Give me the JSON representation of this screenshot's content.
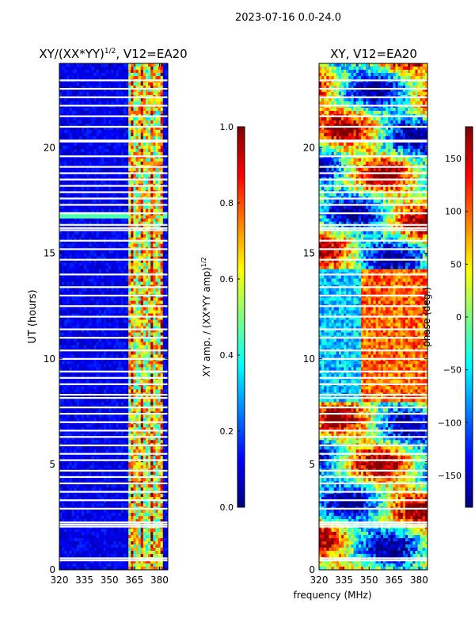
{
  "figure_title": "2023-07-16 0.0-24.0",
  "xlabel_shared": "frequency (MHz)",
  "colors": {
    "jet": [
      "#00007f",
      "#0000ff",
      "#007fff",
      "#00ffff",
      "#7fff7f",
      "#ffff00",
      "#ff7f00",
      "#ff0000",
      "#7f0000"
    ],
    "gap": "#ffffff",
    "frame": "#000000"
  },
  "chart_data": [
    {
      "type": "heatmap",
      "title_main": "XY/(XX*YY)",
      "title_sup": "1/2",
      "title_tail": ", V12=EA20",
      "xlabel": "",
      "ylabel": "UT (hours)",
      "xlim": [
        320,
        385
      ],
      "ylim": [
        0,
        24
      ],
      "xticks": [
        320,
        335,
        350,
        365,
        380
      ],
      "xtick_labels": [
        "320",
        "335",
        "350",
        "365",
        "380"
      ],
      "yticks": [
        0,
        5,
        10,
        15,
        20
      ],
      "ytick_labels": [
        "0",
        "5",
        "10",
        "15",
        "20"
      ],
      "value_range": [
        0.0,
        1.0
      ],
      "bright_band_MHz": [
        362,
        382
      ],
      "colorbar": {
        "label_main": "XY amp. / (XX*YY amp)",
        "label_sup": "1/2",
        "min": 0.0,
        "max": 1.0,
        "ticks": [
          0.0,
          0.2,
          0.4,
          0.6,
          0.8,
          1.0
        ],
        "tick_labels": [
          "0.0",
          "0.2",
          "0.4",
          "0.6",
          "0.8",
          "1.0"
        ]
      }
    },
    {
      "type": "heatmap",
      "title_main": "XY, V12=EA20",
      "title_sup": "",
      "title_tail": "",
      "xlabel": "frequency (MHz)",
      "ylabel": "",
      "xlim": [
        320,
        385
      ],
      "ylim": [
        0,
        24
      ],
      "xticks": [
        320,
        335,
        350,
        365,
        380
      ],
      "xtick_labels": [
        "320",
        "335",
        "350",
        "365",
        "380"
      ],
      "yticks": [
        0,
        5,
        10,
        15,
        20
      ],
      "ytick_labels": [
        "0",
        "5",
        "10",
        "15",
        "20"
      ],
      "value_range": [
        -180,
        180
      ],
      "colorbar": {
        "label_main": "phase (deg.)",
        "label_sup": "",
        "min": -180,
        "max": 180,
        "ticks": [
          -150,
          -100,
          -50,
          0,
          50,
          100,
          150
        ],
        "tick_labels": [
          "−150",
          "−100",
          "−50",
          "0",
          "50",
          "100",
          "150"
        ]
      }
    }
  ],
  "flagged_time_gaps_hours": [
    0.45,
    0.55,
    2.05,
    2.15,
    2.25,
    2.9,
    3.3,
    3.7,
    4.1,
    4.4,
    4.7,
    5.2,
    5.5,
    5.9,
    6.3,
    6.6,
    7.0,
    7.4,
    7.7,
    8.15,
    8.3,
    8.8,
    9.1,
    9.4,
    10.0,
    10.4,
    11.0,
    11.4,
    12.0,
    12.5,
    13.0,
    13.4,
    14.0,
    14.7,
    15.2,
    15.6,
    16.1,
    16.2,
    16.35,
    16.9,
    17.3,
    17.6,
    17.9,
    18.2,
    18.5,
    18.8,
    19.1,
    19.6,
    20.3,
    20.35,
    21.0,
    21.5,
    22.0,
    22.4,
    22.8,
    23.2
  ]
}
